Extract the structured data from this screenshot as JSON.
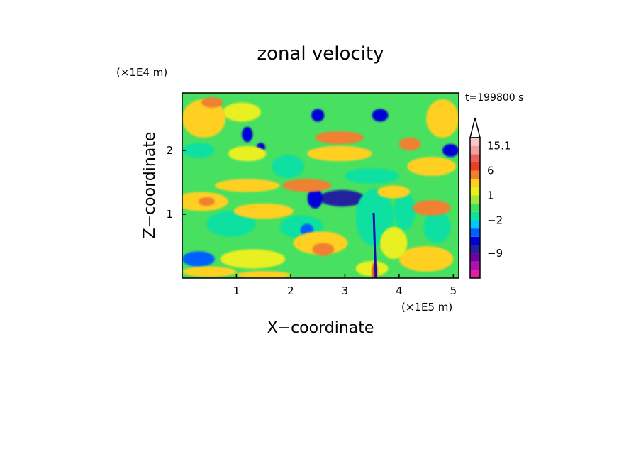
{
  "chart_data": {
    "type": "heatmap",
    "title": "zonal velocity",
    "xlabel": "X−coordinate",
    "ylabel": "Z−coordinate",
    "x_unit": "(×1E5 m)",
    "y_unit": "(×1E4 m)",
    "time_label": "t=199800 s",
    "xlim": [
      0,
      5.1
    ],
    "ylim": [
      0,
      2.9
    ],
    "x_ticks": [
      {
        "value": 1,
        "label": "1"
      },
      {
        "value": 2,
        "label": "2"
      },
      {
        "value": 3,
        "label": "3"
      },
      {
        "value": 4,
        "label": "4"
      },
      {
        "value": 5,
        "label": "5"
      }
    ],
    "y_ticks": [
      {
        "value": 1,
        "label": "1"
      },
      {
        "value": 2,
        "label": "2"
      }
    ],
    "colorbar": {
      "levels": [
        -15,
        -12,
        -9,
        -6,
        -4,
        -3,
        -2,
        -1,
        0,
        1,
        2,
        4,
        6,
        9,
        12,
        15.1
      ],
      "colors": [
        "#e020a0",
        "#b010b0",
        "#7000a0",
        "#2020a0",
        "#0000d8",
        "#0060ff",
        "#00c8ff",
        "#10e0a0",
        "#40e060",
        "#a0e840",
        "#e8f020",
        "#ffd020",
        "#f08030",
        "#e84020",
        "#e86060",
        "#f0a0a0",
        "#f8c8c8"
      ],
      "tick_labels": [
        {
          "value": 15.1,
          "label": "15.1"
        },
        {
          "value": 6,
          "label": "6"
        },
        {
          "value": 1,
          "label": "1"
        },
        {
          "value": -2,
          "label": "−2"
        },
        {
          "value": -9,
          "label": "−9"
        }
      ],
      "background_color": "#48e060",
      "extend": "max"
    },
    "features": [
      {
        "kind": "blob",
        "x": 2.95,
        "z": 1.25,
        "rx": 0.42,
        "rz": 0.13,
        "value": -9
      },
      {
        "kind": "blob",
        "x": 2.45,
        "z": 1.25,
        "rx": 0.14,
        "rz": 0.16,
        "value": -6
      },
      {
        "kind": "blob",
        "x": 3.55,
        "z": 0.95,
        "rx": 0.35,
        "rz": 0.45,
        "value": -2
      },
      {
        "kind": "blob",
        "x": 3.5,
        "z": 1.6,
        "rx": 0.5,
        "rz": 0.12,
        "value": -2
      },
      {
        "kind": "blob",
        "x": 0.9,
        "z": 0.85,
        "rx": 0.45,
        "rz": 0.2,
        "value": -2
      },
      {
        "kind": "blob",
        "x": 2.2,
        "z": 0.8,
        "rx": 0.4,
        "rz": 0.18,
        "value": -2
      },
      {
        "kind": "blob",
        "x": 2.3,
        "z": 0.75,
        "rx": 0.12,
        "rz": 0.1,
        "value": -4
      },
      {
        "kind": "blob",
        "x": 1.2,
        "z": 2.25,
        "rx": 0.1,
        "rz": 0.12,
        "value": -6
      },
      {
        "kind": "blob",
        "x": 1.45,
        "z": 2.05,
        "rx": 0.08,
        "rz": 0.07,
        "value": -6
      },
      {
        "kind": "blob",
        "x": 2.0,
        "z": 1.7,
        "rx": 0.12,
        "rz": 0.08,
        "value": -6
      },
      {
        "kind": "blob",
        "x": 1.95,
        "z": 1.75,
        "rx": 0.3,
        "rz": 0.18,
        "value": -2
      },
      {
        "kind": "blob",
        "x": 3.65,
        "z": 2.55,
        "rx": 0.15,
        "rz": 0.1,
        "value": -6
      },
      {
        "kind": "blob",
        "x": 4.95,
        "z": 2.0,
        "rx": 0.15,
        "rz": 0.1,
        "value": -6
      },
      {
        "kind": "blob",
        "x": 2.5,
        "z": 2.55,
        "rx": 0.12,
        "rz": 0.1,
        "value": -6
      },
      {
        "kind": "blob",
        "x": 0.3,
        "z": 0.3,
        "rx": 0.3,
        "rz": 0.12,
        "value": -4
      },
      {
        "kind": "blob",
        "x": 4.7,
        "z": 0.8,
        "rx": 0.25,
        "rz": 0.25,
        "value": -2
      },
      {
        "kind": "blob",
        "x": 4.1,
        "z": 1.05,
        "rx": 0.2,
        "rz": 0.3,
        "value": -2
      },
      {
        "kind": "blob",
        "x": 0.3,
        "z": 2.0,
        "rx": 0.3,
        "rz": 0.12,
        "value": -2
      },
      {
        "kind": "blob",
        "x": 1.1,
        "z": 2.6,
        "rx": 0.35,
        "rz": 0.15,
        "value": 1
      },
      {
        "kind": "blob",
        "x": 0.4,
        "z": 2.5,
        "rx": 0.4,
        "rz": 0.3,
        "value": 2
      },
      {
        "kind": "blob",
        "x": 0.35,
        "z": 1.2,
        "rx": 0.5,
        "rz": 0.15,
        "value": 2
      },
      {
        "kind": "blob",
        "x": 1.5,
        "z": 1.05,
        "rx": 0.55,
        "rz": 0.12,
        "value": 2
      },
      {
        "kind": "blob",
        "x": 1.2,
        "z": 1.45,
        "rx": 0.6,
        "rz": 0.1,
        "value": 2
      },
      {
        "kind": "blob",
        "x": 2.9,
        "z": 1.95,
        "rx": 0.6,
        "rz": 0.12,
        "value": 2
      },
      {
        "kind": "blob",
        "x": 2.9,
        "z": 2.2,
        "rx": 0.45,
        "rz": 0.1,
        "value": 4
      },
      {
        "kind": "blob",
        "x": 2.3,
        "z": 1.45,
        "rx": 0.45,
        "rz": 0.1,
        "value": 4
      },
      {
        "kind": "blob",
        "x": 2.55,
        "z": 0.55,
        "rx": 0.5,
        "rz": 0.18,
        "value": 2
      },
      {
        "kind": "blob",
        "x": 2.6,
        "z": 0.45,
        "rx": 0.2,
        "rz": 0.1,
        "value": 4
      },
      {
        "kind": "blob",
        "x": 1.3,
        "z": 0.3,
        "rx": 0.6,
        "rz": 0.15,
        "value": 1
      },
      {
        "kind": "blob",
        "x": 0.5,
        "z": 0.1,
        "rx": 0.5,
        "rz": 0.08,
        "value": 2
      },
      {
        "kind": "blob",
        "x": 1.5,
        "z": 0.05,
        "rx": 0.5,
        "rz": 0.06,
        "value": 2
      },
      {
        "kind": "blob",
        "x": 4.6,
        "z": 1.75,
        "rx": 0.45,
        "rz": 0.15,
        "value": 2
      },
      {
        "kind": "blob",
        "x": 4.8,
        "z": 2.5,
        "rx": 0.3,
        "rz": 0.3,
        "value": 2
      },
      {
        "kind": "blob",
        "x": 4.2,
        "z": 2.1,
        "rx": 0.2,
        "rz": 0.1,
        "value": 4
      },
      {
        "kind": "blob",
        "x": 3.9,
        "z": 1.35,
        "rx": 0.3,
        "rz": 0.1,
        "value": 2
      },
      {
        "kind": "blob",
        "x": 4.6,
        "z": 1.1,
        "rx": 0.35,
        "rz": 0.12,
        "value": 4
      },
      {
        "kind": "blob",
        "x": 4.5,
        "z": 0.3,
        "rx": 0.5,
        "rz": 0.2,
        "value": 2
      },
      {
        "kind": "blob",
        "x": 3.9,
        "z": 0.55,
        "rx": 0.25,
        "rz": 0.25,
        "value": 1
      },
      {
        "kind": "blob",
        "x": 1.2,
        "z": 1.95,
        "rx": 0.35,
        "rz": 0.12,
        "value": 1
      },
      {
        "kind": "blob",
        "x": 3.5,
        "z": 0.15,
        "rx": 0.3,
        "rz": 0.12,
        "value": 1
      },
      {
        "kind": "blob",
        "x": 0.55,
        "z": 2.75,
        "rx": 0.2,
        "rz": 0.08,
        "value": 4
      },
      {
        "kind": "blob",
        "x": 0.45,
        "z": 1.2,
        "rx": 0.15,
        "rz": 0.07,
        "value": 4
      },
      {
        "kind": "blob",
        "x": 3.55,
        "z": 0.1,
        "rx": 0.05,
        "rz": 0.15,
        "value": 6
      }
    ]
  }
}
